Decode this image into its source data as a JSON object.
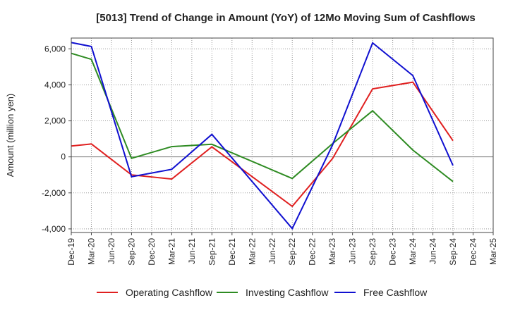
{
  "chart_data": {
    "type": "line",
    "title": "[5013]  Trend of Change in Amount (YoY) of 12Mo Moving Sum of Cashflows",
    "xlabel": "",
    "ylabel": "Amount (million yen)",
    "ylim": [
      -4200,
      6600
    ],
    "yticks": [
      -4000,
      -2000,
      0,
      2000,
      4000,
      6000
    ],
    "ytick_labels": [
      "-4,000",
      "-2,000",
      "0",
      "2,000",
      "4,000",
      "6,000"
    ],
    "categories": [
      "Dec-19",
      "Mar-20",
      "Jun-20",
      "Sep-20",
      "Dec-20",
      "Mar-21",
      "Jun-21",
      "Sep-21",
      "Dec-21",
      "Mar-22",
      "Jun-22",
      "Sep-22",
      "Dec-22",
      "Mar-23",
      "Jun-23",
      "Sep-23",
      "Dec-23",
      "Mar-24",
      "Jun-24",
      "Sep-24",
      "Dec-24",
      "Mar-25"
    ],
    "grid": true,
    "legend_position": "bottom",
    "series": [
      {
        "name": "Operating Cashflow",
        "color": "#e02020",
        "values": [
          600,
          720,
          null,
          -1000,
          null,
          -1230,
          null,
          560,
          null,
          null,
          null,
          -2750,
          null,
          -100,
          null,
          3780,
          null,
          4150,
          null,
          900,
          null,
          null
        ]
      },
      {
        "name": "Investing Cashflow",
        "color": "#2e8b22",
        "values": [
          5750,
          5420,
          null,
          -80,
          null,
          570,
          null,
          700,
          null,
          null,
          null,
          -1200,
          null,
          730,
          null,
          2560,
          null,
          380,
          null,
          -1370,
          null,
          null
        ]
      },
      {
        "name": "Free Cashflow",
        "color": "#1010d0",
        "values": [
          6350,
          6130,
          null,
          -1100,
          null,
          -690,
          null,
          1250,
          null,
          null,
          null,
          -3980,
          null,
          650,
          null,
          6330,
          null,
          4520,
          null,
          -480,
          null,
          null
        ]
      }
    ]
  }
}
